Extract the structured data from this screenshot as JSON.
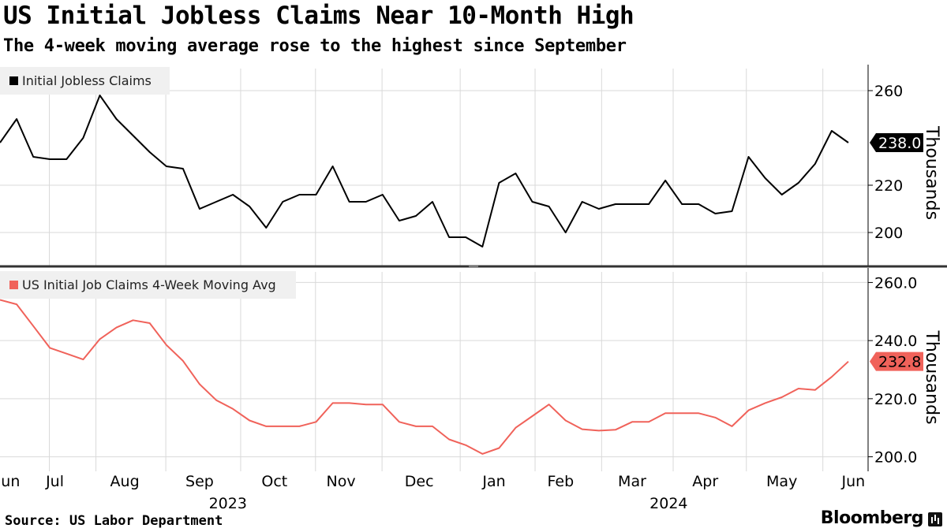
{
  "title": "US Initial Jobless Claims Near 10-Month High",
  "subtitle": "The 4-week moving average rose to the highest since September",
  "source": "Source: US Labor Department",
  "brand": "Bloomberg",
  "colors": {
    "claims": "#000000",
    "avg": "#f0625a",
    "grid": "#d9d9d9",
    "divider": "#333333"
  },
  "chart_data": [
    {
      "type": "line",
      "name": "Initial Jobless Claims",
      "legend": "Initial Jobless Claims",
      "ylabel": "Thousands",
      "ylim": [
        186,
        271
      ],
      "ticks": [
        {
          "value": 200,
          "label": "200"
        },
        {
          "value": 220,
          "label": "220"
        },
        {
          "value": 260,
          "label": "260"
        }
      ],
      "last_value": 238,
      "last_label": "238.0",
      "values": [
        238,
        248,
        232,
        231,
        231,
        240,
        258,
        248,
        241,
        234,
        228,
        227,
        210,
        213,
        216,
        211,
        202,
        213,
        216,
        216,
        228,
        213,
        213,
        216,
        205,
        207,
        213,
        198,
        198,
        194,
        221,
        225,
        213,
        211,
        200,
        213,
        210,
        212,
        212,
        212,
        222,
        212,
        212,
        208,
        209,
        232,
        223,
        216,
        221,
        229,
        243,
        238
      ]
    },
    {
      "type": "line",
      "name": "US Initial Job Claims 4-Week Moving Avg",
      "legend": "US Initial Job Claims 4-Week Moving Avg",
      "ylabel": "Thousands",
      "ylim": [
        195,
        265
      ],
      "ticks": [
        {
          "value": 200,
          "label": "200.0"
        },
        {
          "value": 220,
          "label": "220.0"
        },
        {
          "value": 240,
          "label": "240.0"
        },
        {
          "value": 260,
          "label": "260.0"
        }
      ],
      "last_value": 232.8,
      "last_label": "232.8",
      "values": [
        254,
        252.5,
        245,
        237.5,
        235.5,
        233.5,
        240.5,
        244.5,
        247,
        246,
        238.5,
        233,
        225,
        219.5,
        216.5,
        212.5,
        210.5,
        210.5,
        210.5,
        212,
        218.5,
        218.5,
        218,
        218,
        212,
        210.5,
        210.5,
        206,
        204,
        201,
        203,
        210,
        214,
        218,
        212.5,
        209.5,
        209,
        209.3,
        212,
        212,
        215,
        215,
        215,
        213.5,
        210.5,
        216,
        218.5,
        220.5,
        223.5,
        223,
        227.5,
        232.8
      ]
    }
  ],
  "x_axis": {
    "months": [
      {
        "label": "Jun",
        "index": 0.5
      },
      {
        "label": "Jul",
        "index": 3.3
      },
      {
        "label": "Aug",
        "index": 7.5
      },
      {
        "label": "Sep",
        "index": 12
      },
      {
        "label": "Oct",
        "index": 16.5
      },
      {
        "label": "Nov",
        "index": 20.5
      },
      {
        "label": "Dec",
        "index": 25.2
      },
      {
        "label": "Jan",
        "index": 29.7
      },
      {
        "label": "Feb",
        "index": 33.7
      },
      {
        "label": "Mar",
        "index": 38
      },
      {
        "label": "Apr",
        "index": 42.4
      },
      {
        "label": "May",
        "index": 47
      },
      {
        "label": "Jun",
        "index": 51.3
      }
    ],
    "years": [
      {
        "label": "2023",
        "index": 13.7
      },
      {
        "label": "2024",
        "index": 40.2
      }
    ]
  }
}
